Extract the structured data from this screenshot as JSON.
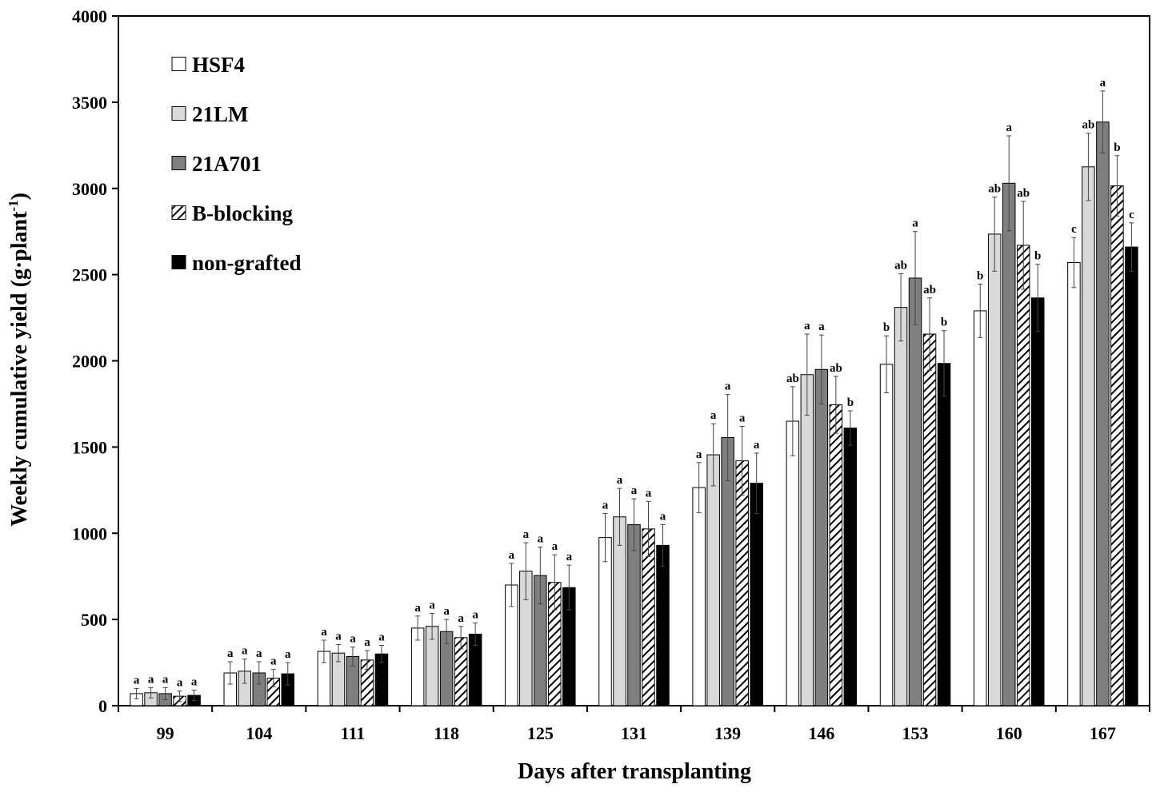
{
  "chart_data": {
    "type": "bar",
    "xlabel": "Days after transplanting",
    "ylabel_main": "Weekly cumulative yield (g·plant",
    "ylabel_sup": "-1",
    "ylabel_close": ")",
    "ylim": [
      0,
      4000
    ],
    "yticks": [
      0,
      500,
      1000,
      1500,
      2000,
      2500,
      3000,
      3500,
      4000
    ],
    "grid": false,
    "legend_position": "top-left",
    "categories": [
      "99",
      "104",
      "111",
      "118",
      "125",
      "131",
      "139",
      "146",
      "153",
      "160",
      "167"
    ],
    "series": [
      {
        "name": "HSF4",
        "fill": "white",
        "color": "#ffffff",
        "values": [
          70,
          190,
          315,
          450,
          700,
          975,
          1265,
          1650,
          1980,
          2290,
          2570
        ],
        "errors": [
          30,
          65,
          65,
          70,
          125,
          140,
          145,
          200,
          165,
          155,
          145
        ],
        "labels": [
          "a",
          "a",
          "a",
          "a",
          "a",
          "a",
          "a",
          "ab",
          "b",
          "b",
          "c"
        ]
      },
      {
        "name": "21LM",
        "fill": "lightgray",
        "color": "#d9d9d9",
        "values": [
          75,
          200,
          305,
          460,
          780,
          1095,
          1455,
          1920,
          2310,
          2735,
          3125
        ],
        "errors": [
          30,
          70,
          50,
          75,
          165,
          165,
          180,
          235,
          195,
          215,
          195
        ],
        "labels": [
          "a",
          "a",
          "a",
          "a",
          "a",
          "a",
          "a",
          "a",
          "ab",
          "ab",
          "ab"
        ]
      },
      {
        "name": "21A701",
        "fill": "darkgray",
        "color": "#7f7f7f",
        "values": [
          70,
          190,
          285,
          430,
          755,
          1050,
          1555,
          1950,
          2480,
          3030,
          3385
        ],
        "errors": [
          35,
          65,
          55,
          70,
          165,
          150,
          250,
          200,
          270,
          275,
          180
        ],
        "labels": [
          "a",
          "a",
          "a",
          "a",
          "a",
          "a",
          "a",
          "a",
          "a",
          "a",
          "a"
        ]
      },
      {
        "name": "B-blocking",
        "fill": "hatch",
        "color": "#000000",
        "values": [
          55,
          160,
          265,
          395,
          715,
          1025,
          1420,
          1745,
          2155,
          2670,
          3015
        ],
        "errors": [
          30,
          50,
          55,
          65,
          160,
          160,
          200,
          165,
          210,
          255,
          175
        ],
        "labels": [
          "a",
          "a",
          "a",
          "a",
          "a",
          "a",
          "a",
          "ab",
          "ab",
          "ab",
          "b"
        ]
      },
      {
        "name": "non-grafted",
        "fill": "black",
        "color": "#000000",
        "values": [
          60,
          185,
          300,
          415,
          685,
          930,
          1290,
          1610,
          1985,
          2365,
          2660
        ],
        "errors": [
          30,
          65,
          50,
          65,
          130,
          120,
          175,
          100,
          190,
          195,
          140
        ],
        "labels": [
          "a",
          "a",
          "a",
          "a",
          "a",
          "a",
          "a",
          "b",
          "b",
          "b",
          "c"
        ]
      }
    ]
  }
}
